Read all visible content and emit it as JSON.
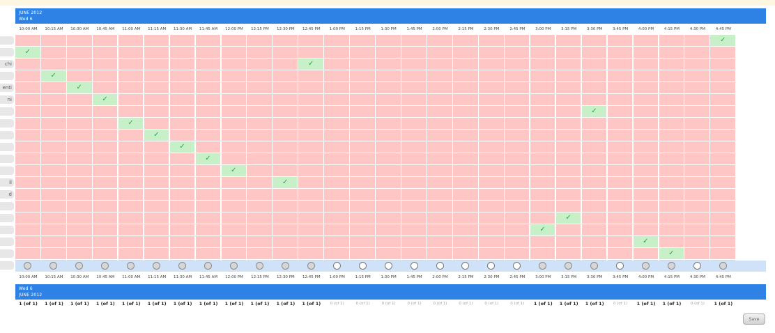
{
  "banner": {
    "month": "JUNE 2012",
    "day": "Wed 6"
  },
  "times": [
    "10:00 AM",
    "10:15 AM",
    "10:30 AM",
    "10:45 AM",
    "11:00 AM",
    "11:15 AM",
    "11:30 AM",
    "11:45 AM",
    "12:00 PM",
    "12:15 PM",
    "12:30 PM",
    "12:45 PM",
    "1:00 PM",
    "1:15 PM",
    "1:30 PM",
    "1:45 PM",
    "2:00 PM",
    "2:15 PM",
    "2:30 PM",
    "2:45 PM",
    "3:00 PM",
    "3:15 PM",
    "3:30 PM",
    "3:45 PM",
    "4:00 PM",
    "4:15 PM",
    "4:30 PM",
    "4:45 PM"
  ],
  "participants": [
    "",
    "",
    "chi",
    "",
    "enti",
    "ni",
    "",
    "",
    "",
    "",
    "",
    "",
    "il",
    "d",
    "",
    "",
    "",
    "",
    "",
    ""
  ],
  "selections": [
    [
      1,
      0
    ],
    [
      2,
      11
    ],
    [
      3,
      1
    ],
    [
      4,
      2
    ],
    [
      5,
      3
    ],
    [
      6,
      22
    ],
    [
      7,
      4
    ],
    [
      8,
      5
    ],
    [
      9,
      6
    ],
    [
      10,
      7
    ],
    [
      11,
      8
    ],
    [
      12,
      10
    ],
    [
      15,
      21
    ],
    [
      16,
      20
    ],
    [
      17,
      24
    ],
    [
      18,
      25
    ],
    [
      19,
      9
    ],
    [
      0,
      27
    ]
  ],
  "check_mark": "✓",
  "radio_open": [
    12,
    13,
    14,
    15,
    16,
    17,
    18,
    19,
    23,
    26
  ],
  "counts": [
    "1 (of 1)",
    "1 (of 1)",
    "1 (of 1)",
    "1 (of 1)",
    "1 (of 1)",
    "1 (of 1)",
    "1 (of 1)",
    "1 (of 1)",
    "1 (of 1)",
    "1 (of 1)",
    "1 (of 1)",
    "1 (of 1)",
    "0 (of 1)",
    "0 (of 1)",
    "0 (of 1)",
    "0 (of 1)",
    "0 (of 1)",
    "0 (of 1)",
    "0 (of 1)",
    "0 (of 1)",
    "1 (of 1)",
    "1 (of 1)",
    "1 (of 1)",
    "0 (of 1)",
    "1 (of 1)",
    "1 (of 1)",
    "0 (of 1)",
    "1 (of 1)"
  ],
  "save_label": "Save"
}
